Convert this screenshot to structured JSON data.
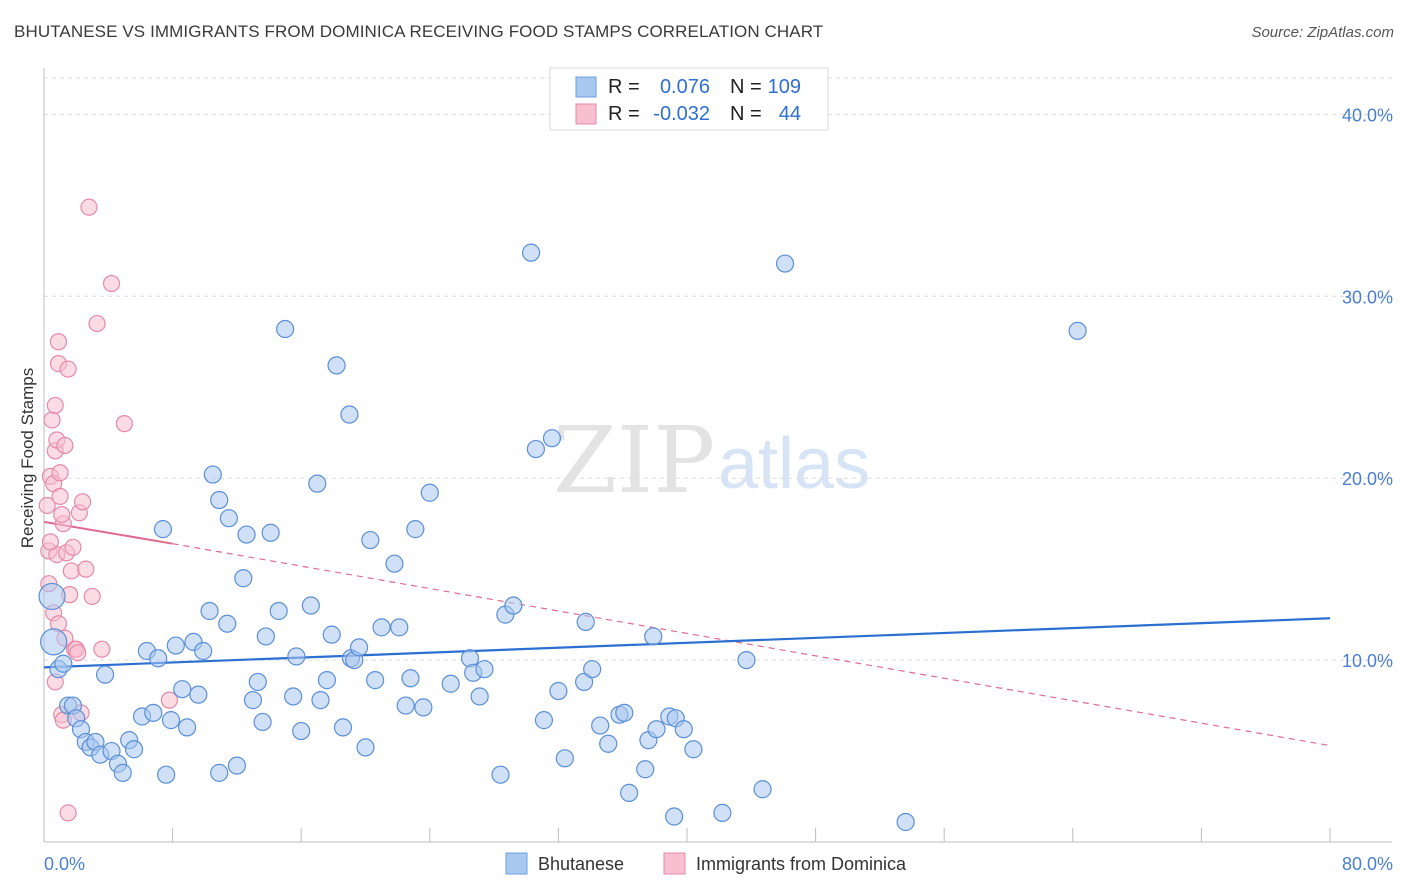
{
  "header": {
    "title": "BHUTANESE VS IMMIGRANTS FROM DOMINICA RECEIVING FOOD STAMPS CORRELATION CHART",
    "source": "Source: ZipAtlas.com"
  },
  "watermark": {
    "zip": "ZIP",
    "atlas": "atlas"
  },
  "legend": {
    "r_label": "R =",
    "n_label": "N =",
    "rows": [
      {
        "r": "0.076",
        "n": "109",
        "color": "#a9c8f0",
        "stroke": "#6f9ee0"
      },
      {
        "r": "-0.032",
        "n": "44",
        "color": "#f7bfd0",
        "stroke": "#e58aa8"
      }
    ]
  },
  "colors": {
    "blue_fill": "#a9c8f0",
    "blue_stroke": "#5b8fd8",
    "blue_line": "#2b6fd0",
    "pink_fill": "#f7bfd0",
    "pink_stroke": "#e58aa8",
    "pink_line": "#e06a90",
    "grid": "#dcdcdc",
    "axis_text": "#4a7fd0"
  },
  "chart_data": {
    "type": "scatter",
    "title": "BHUTANESE VS IMMIGRANTS FROM DOMINICA RECEIVING FOOD STAMPS CORRELATION CHART",
    "xlabel": "",
    "ylabel": "Receiving Food Stamps",
    "xlim": [
      0,
      80
    ],
    "ylim": [
      0,
      42
    ],
    "x_tick_labels": [
      "0.0%",
      "80.0%"
    ],
    "y_ticks": [
      10,
      20,
      30,
      40
    ],
    "y_tick_labels": [
      "10.0%",
      "20.0%",
      "30.0%",
      "40.0%"
    ],
    "grid": true,
    "series": [
      {
        "name": "Bhutanese",
        "points": [
          [
            0.5,
            13.5
          ],
          [
            0.6,
            11.0
          ],
          [
            0.9,
            9.5
          ],
          [
            1.2,
            9.8
          ],
          [
            1.5,
            7.5
          ],
          [
            1.8,
            7.5
          ],
          [
            2.0,
            6.8
          ],
          [
            2.3,
            6.2
          ],
          [
            2.6,
            5.5
          ],
          [
            2.9,
            5.2
          ],
          [
            3.2,
            5.5
          ],
          [
            3.5,
            4.8
          ],
          [
            3.8,
            9.2
          ],
          [
            4.2,
            5.0
          ],
          [
            4.6,
            4.3
          ],
          [
            4.9,
            3.8
          ],
          [
            5.3,
            5.6
          ],
          [
            5.6,
            5.1
          ],
          [
            6.1,
            6.9
          ],
          [
            6.4,
            10.5
          ],
          [
            6.8,
            7.1
          ],
          [
            7.1,
            10.1
          ],
          [
            7.4,
            17.2
          ],
          [
            7.6,
            3.7
          ],
          [
            7.9,
            6.7
          ],
          [
            8.2,
            10.8
          ],
          [
            8.6,
            8.4
          ],
          [
            8.9,
            6.3
          ],
          [
            9.3,
            11.0
          ],
          [
            9.6,
            8.1
          ],
          [
            9.9,
            10.5
          ],
          [
            10.3,
            12.7
          ],
          [
            10.5,
            20.2
          ],
          [
            10.9,
            18.8
          ],
          [
            10.9,
            3.8
          ],
          [
            11.4,
            12.0
          ],
          [
            11.5,
            17.8
          ],
          [
            12.0,
            4.2
          ],
          [
            12.4,
            14.5
          ],
          [
            12.6,
            16.9
          ],
          [
            13.0,
            7.8
          ],
          [
            13.3,
            8.8
          ],
          [
            13.6,
            6.6
          ],
          [
            13.8,
            11.3
          ],
          [
            14.1,
            17.0
          ],
          [
            14.6,
            12.7
          ],
          [
            15.0,
            28.2
          ],
          [
            15.5,
            8.0
          ],
          [
            15.7,
            10.2
          ],
          [
            16.0,
            6.1
          ],
          [
            16.6,
            13.0
          ],
          [
            17.0,
            19.7
          ],
          [
            17.2,
            7.8
          ],
          [
            17.6,
            8.9
          ],
          [
            17.9,
            11.4
          ],
          [
            18.2,
            26.2
          ],
          [
            18.6,
            6.3
          ],
          [
            19.0,
            23.5
          ],
          [
            19.1,
            10.1
          ],
          [
            19.3,
            10.0
          ],
          [
            19.6,
            10.7
          ],
          [
            20.0,
            5.2
          ],
          [
            20.3,
            16.6
          ],
          [
            20.6,
            8.9
          ],
          [
            21.0,
            11.8
          ],
          [
            21.8,
            15.3
          ],
          [
            22.1,
            11.8
          ],
          [
            22.5,
            7.5
          ],
          [
            22.8,
            9.0
          ],
          [
            23.1,
            17.2
          ],
          [
            23.6,
            7.4
          ],
          [
            24.0,
            19.2
          ],
          [
            25.3,
            8.7
          ],
          [
            26.5,
            10.1
          ],
          [
            26.7,
            9.3
          ],
          [
            27.1,
            8.0
          ],
          [
            27.4,
            9.5
          ],
          [
            28.4,
            3.7
          ],
          [
            28.7,
            12.5
          ],
          [
            29.2,
            13.0
          ],
          [
            30.3,
            32.4
          ],
          [
            30.6,
            21.6
          ],
          [
            31.1,
            6.7
          ],
          [
            31.6,
            22.2
          ],
          [
            32.0,
            8.3
          ],
          [
            32.4,
            4.6
          ],
          [
            33.6,
            8.8
          ],
          [
            33.7,
            12.1
          ],
          [
            34.1,
            9.5
          ],
          [
            34.6,
            6.4
          ],
          [
            35.1,
            5.4
          ],
          [
            35.8,
            7.0
          ],
          [
            36.1,
            7.1
          ],
          [
            36.4,
            2.7
          ],
          [
            37.4,
            4.0
          ],
          [
            37.6,
            5.6
          ],
          [
            37.9,
            11.3
          ],
          [
            38.1,
            6.2
          ],
          [
            38.9,
            6.9
          ],
          [
            39.2,
            1.4
          ],
          [
            39.3,
            6.8
          ],
          [
            39.8,
            6.2
          ],
          [
            40.4,
            5.1
          ],
          [
            42.2,
            1.6
          ],
          [
            43.7,
            10.0
          ],
          [
            44.7,
            2.9
          ],
          [
            46.1,
            31.8
          ],
          [
            53.6,
            1.1
          ],
          [
            64.3,
            28.1
          ]
        ],
        "trend": {
          "x": [
            0,
            80
          ],
          "y": [
            9.6,
            12.3
          ]
        }
      },
      {
        "name": "Immigrants from Dominica",
        "points": [
          [
            0.2,
            18.5
          ],
          [
            0.3,
            16.0
          ],
          [
            0.3,
            14.2
          ],
          [
            0.4,
            20.1
          ],
          [
            0.5,
            23.2
          ],
          [
            0.6,
            19.7
          ],
          [
            0.7,
            21.5
          ],
          [
            0.7,
            24.0
          ],
          [
            0.8,
            15.8
          ],
          [
            0.8,
            22.1
          ],
          [
            0.9,
            27.5
          ],
          [
            0.9,
            26.3
          ],
          [
            1.0,
            19.0
          ],
          [
            1.0,
            20.3
          ],
          [
            1.1,
            7.0
          ],
          [
            1.2,
            6.7
          ],
          [
            1.2,
            17.5
          ],
          [
            1.3,
            21.8
          ],
          [
            1.4,
            15.9
          ],
          [
            1.5,
            26.0
          ],
          [
            1.6,
            13.6
          ],
          [
            1.7,
            14.9
          ],
          [
            1.8,
            16.2
          ],
          [
            1.9,
            10.6
          ],
          [
            2.0,
            10.6
          ],
          [
            2.1,
            10.4
          ],
          [
            2.2,
            18.1
          ],
          [
            2.3,
            7.1
          ],
          [
            2.4,
            18.7
          ],
          [
            2.6,
            15.0
          ],
          [
            2.8,
            34.9
          ],
          [
            3.0,
            13.5
          ],
          [
            3.3,
            28.5
          ],
          [
            3.6,
            10.6
          ],
          [
            4.2,
            30.7
          ],
          [
            5.0,
            23.0
          ],
          [
            7.8,
            7.8
          ],
          [
            1.5,
            1.6
          ],
          [
            0.6,
            12.6
          ],
          [
            1.1,
            18.0
          ],
          [
            0.4,
            16.5
          ],
          [
            0.9,
            12.0
          ],
          [
            1.3,
            11.2
          ],
          [
            0.7,
            8.8
          ]
        ],
        "trend_solid": {
          "x": [
            0,
            8
          ],
          "y": [
            17.6,
            16.4
          ]
        },
        "trend_dashed": {
          "x": [
            8,
            80
          ],
          "y": [
            16.4,
            5.3
          ]
        }
      }
    ]
  },
  "bottom_legend": [
    {
      "label": "Bhutanese",
      "fill": "#a9c8f0",
      "stroke": "#6f9ee0"
    },
    {
      "label": "Immigrants from Dominica",
      "fill": "#f7bfd0",
      "stroke": "#e58aa8"
    }
  ]
}
